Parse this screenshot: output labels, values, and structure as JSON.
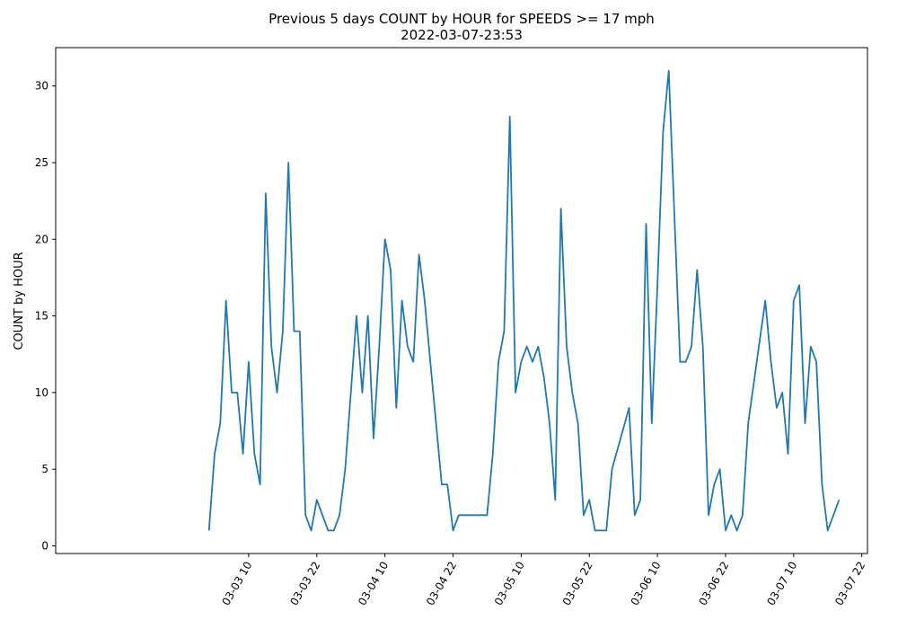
{
  "chart_data": {
    "type": "line",
    "title": "Previous 5 days COUNT by HOUR for SPEEDS >= 17 mph",
    "subtitle": "2022-03-07-23:53",
    "xlabel": "",
    "ylabel": "COUNT by HOUR",
    "xlim": [
      "2022-03-02 00:00",
      "2022-03-07 23:00"
    ],
    "ylim": [
      -0.5,
      32.5
    ],
    "x_ticks": [
      "03-03 10",
      "03-03 22",
      "03-04 10",
      "03-04 22",
      "03-05 10",
      "03-05 22",
      "03-06 10",
      "03-06 22",
      "03-07 10",
      "03-07 22"
    ],
    "y_ticks": [
      0,
      5,
      10,
      15,
      20,
      25,
      30
    ],
    "grid": false,
    "line_color": "#1f77b4",
    "series": [
      {
        "x": [
          "2022-03-03 03:00",
          "2022-03-03 04:00",
          "2022-03-03 05:00",
          "2022-03-03 06:00",
          "2022-03-03 07:00",
          "2022-03-03 08:00",
          "2022-03-03 09:00",
          "2022-03-03 10:00",
          "2022-03-03 11:00",
          "2022-03-03 12:00",
          "2022-03-03 13:00",
          "2022-03-03 14:00",
          "2022-03-03 15:00",
          "2022-03-03 16:00",
          "2022-03-03 17:00",
          "2022-03-03 18:00",
          "2022-03-03 19:00",
          "2022-03-03 20:00",
          "2022-03-03 21:00",
          "2022-03-03 22:00",
          "2022-03-03 23:00",
          "2022-03-04 00:00",
          "2022-03-04 01:00",
          "2022-03-04 02:00",
          "2022-03-04 03:00",
          "2022-03-04 04:00",
          "2022-03-04 05:00",
          "2022-03-04 06:00",
          "2022-03-04 07:00",
          "2022-03-04 08:00",
          "2022-03-04 09:00",
          "2022-03-04 10:00",
          "2022-03-04 11:00",
          "2022-03-04 12:00",
          "2022-03-04 13:00",
          "2022-03-04 14:00",
          "2022-03-04 15:00",
          "2022-03-04 16:00",
          "2022-03-04 17:00",
          "2022-03-04 18:00",
          "2022-03-04 19:00",
          "2022-03-04 20:00",
          "2022-03-04 21:00",
          "2022-03-04 22:00",
          "2022-03-04 23:00",
          "2022-03-05 04:00",
          "2022-03-05 05:00",
          "2022-03-05 06:00",
          "2022-03-05 07:00",
          "2022-03-05 08:00",
          "2022-03-05 09:00",
          "2022-03-05 10:00",
          "2022-03-05 11:00",
          "2022-03-05 12:00",
          "2022-03-05 13:00",
          "2022-03-05 14:00",
          "2022-03-05 15:00",
          "2022-03-05 16:00",
          "2022-03-05 17:00",
          "2022-03-05 18:00",
          "2022-03-05 19:00",
          "2022-03-05 20:00",
          "2022-03-05 21:00",
          "2022-03-05 22:00",
          "2022-03-05 23:00",
          "2022-03-06 01:00",
          "2022-03-06 02:00",
          "2022-03-06 05:00",
          "2022-03-06 06:00",
          "2022-03-06 07:00",
          "2022-03-06 08:00",
          "2022-03-06 09:00",
          "2022-03-06 10:00",
          "2022-03-06 11:00",
          "2022-03-06 12:00",
          "2022-03-06 14:00",
          "2022-03-06 15:00",
          "2022-03-06 16:00",
          "2022-03-06 17:00",
          "2022-03-06 18:00",
          "2022-03-06 19:00",
          "2022-03-06 20:00",
          "2022-03-06 21:00",
          "2022-03-06 22:00",
          "2022-03-06 23:00",
          "2022-03-07 00:00",
          "2022-03-07 01:00",
          "2022-03-07 02:00",
          "2022-03-07 05:00",
          "2022-03-07 06:00",
          "2022-03-07 07:00",
          "2022-03-07 08:00",
          "2022-03-07 09:00",
          "2022-03-07 10:00",
          "2022-03-07 11:00",
          "2022-03-07 12:00",
          "2022-03-07 13:00",
          "2022-03-07 14:00",
          "2022-03-07 15:00",
          "2022-03-07 16:00",
          "2022-03-07 17:00",
          "2022-03-07 18:00"
        ],
        "values": [
          1,
          6,
          8,
          16,
          10,
          10,
          6,
          12,
          6,
          4,
          23,
          13,
          10,
          14,
          25,
          14,
          14,
          2,
          1,
          3,
          2,
          1,
          1,
          2,
          5,
          10,
          15,
          10,
          15,
          7,
          13,
          20,
          18,
          9,
          16,
          13,
          12,
          19,
          16,
          12,
          8,
          4,
          4,
          1,
          2,
          2,
          6,
          12,
          14,
          28,
          10,
          12,
          13,
          12,
          13,
          11,
          8,
          3,
          22,
          13,
          10,
          8,
          2,
          3,
          1,
          1,
          5,
          9,
          2,
          3,
          21,
          8,
          17,
          27,
          31,
          12,
          12,
          13,
          18,
          13,
          2,
          4,
          5,
          1,
          2,
          1,
          2,
          8,
          16,
          12,
          9,
          10,
          6,
          16,
          17,
          8,
          13,
          12,
          4,
          1,
          2,
          3
        ]
      }
    ]
  }
}
